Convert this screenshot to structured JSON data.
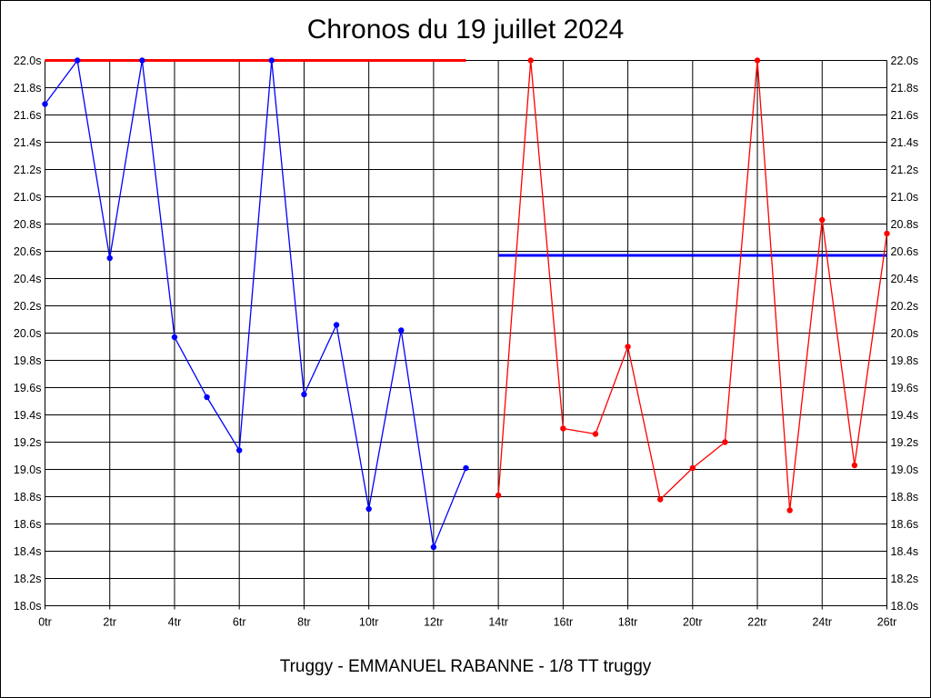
{
  "chart_data": {
    "type": "line",
    "title": "Chronos du 19 juillet 2024",
    "subtitle": "Truggy - EMMANUEL RABANNE - 1/8 TT truggy",
    "xlim": [
      0,
      26
    ],
    "ylim": [
      18.0,
      22.0
    ],
    "x_ticks": [
      0,
      2,
      4,
      6,
      8,
      10,
      12,
      14,
      16,
      18,
      20,
      22,
      24,
      26
    ],
    "x_tick_labels": [
      "0tr",
      "2tr",
      "4tr",
      "6tr",
      "8tr",
      "10tr",
      "12tr",
      "14tr",
      "16tr",
      "18tr",
      "20tr",
      "22tr",
      "24tr",
      "26tr"
    ],
    "y_ticks": [
      18.0,
      18.2,
      18.4,
      18.6,
      18.8,
      19.0,
      19.2,
      19.4,
      19.6,
      19.8,
      20.0,
      20.2,
      20.4,
      20.6,
      20.8,
      21.0,
      21.2,
      21.4,
      21.6,
      21.8,
      22.0
    ],
    "y_tick_labels": [
      "18.0s",
      "18.2s",
      "18.4s",
      "18.6s",
      "18.8s",
      "19.0s",
      "19.2s",
      "19.4s",
      "19.6s",
      "19.8s",
      "20.0s",
      "20.2s",
      "20.4s",
      "20.6s",
      "20.8s",
      "21.0s",
      "21.2s",
      "21.4s",
      "21.6s",
      "21.8s",
      "22.0s"
    ],
    "grid": true,
    "y_axis_both_sides": true,
    "series": [
      {
        "color": "#0000ff",
        "x": [
          0,
          1,
          2,
          3,
          4,
          5,
          6,
          7,
          8,
          9,
          10,
          11,
          12,
          13
        ],
        "y": [
          21.68,
          22.0,
          20.55,
          22.0,
          19.97,
          19.53,
          19.14,
          22.0,
          19.55,
          20.06,
          18.71,
          20.02,
          18.43,
          19.01
        ]
      },
      {
        "color": "#ff0000",
        "x": [
          14,
          15,
          16,
          17,
          18,
          19,
          20,
          21,
          22,
          23,
          24,
          25,
          26
        ],
        "y": [
          18.81,
          22.0,
          19.3,
          19.26,
          19.9,
          18.78,
          19.01,
          19.2,
          22.0,
          18.7,
          20.83,
          19.03,
          20.73
        ]
      }
    ],
    "reference_lines": [
      {
        "color": "#ff0000",
        "y": 22.0,
        "x_range": [
          0,
          13
        ]
      },
      {
        "color": "#0000ff",
        "y": 20.57,
        "x_range": [
          14,
          26
        ]
      }
    ]
  }
}
